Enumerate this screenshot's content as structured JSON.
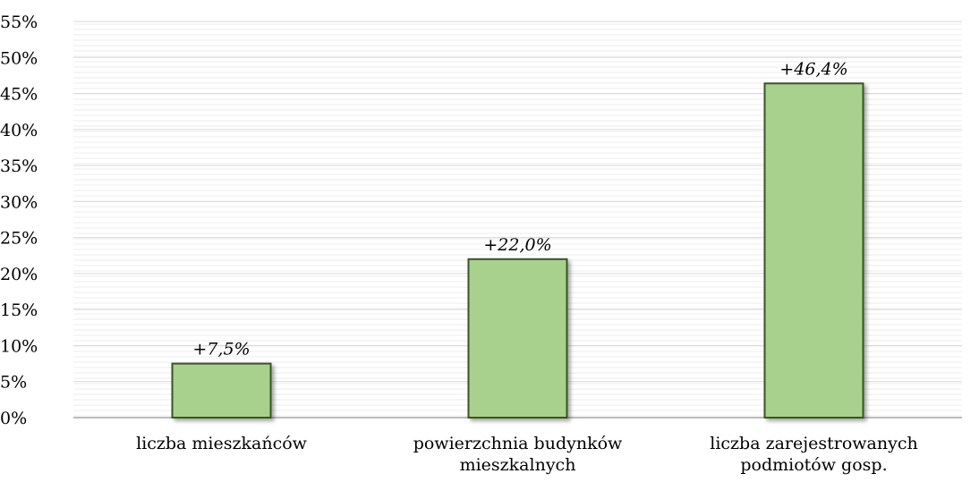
{
  "chart_data": {
    "type": "bar",
    "title": "",
    "xlabel": "",
    "ylabel": "",
    "categories": [
      [
        "liczba mieszkańców"
      ],
      [
        "powierzchnia budynków",
        "mieszkalnych"
      ],
      [
        "liczba zarejestrowanych",
        "podmiotów gosp."
      ]
    ],
    "values": [
      7.5,
      22.0,
      46.4
    ],
    "data_labels": [
      "+7,5%",
      "+22,0%",
      "+46,4%"
    ],
    "ylim": [
      0,
      55
    ],
    "yticks": [
      "0%",
      "5%",
      "10%",
      "15%",
      "20%",
      "25%",
      "30%",
      "35%",
      "40%",
      "45%",
      "50%",
      "55%"
    ],
    "ytick_values": [
      0,
      5,
      10,
      15,
      20,
      25,
      30,
      35,
      40,
      45,
      50,
      55
    ],
    "grid": true,
    "legend": "none",
    "colors": {
      "bar_fill": "#a9d18e",
      "bar_stroke": "#375623",
      "gridline": "#d9d9d9",
      "plot_background": "#f2f2f2",
      "axis": "#a6a6a6"
    }
  }
}
